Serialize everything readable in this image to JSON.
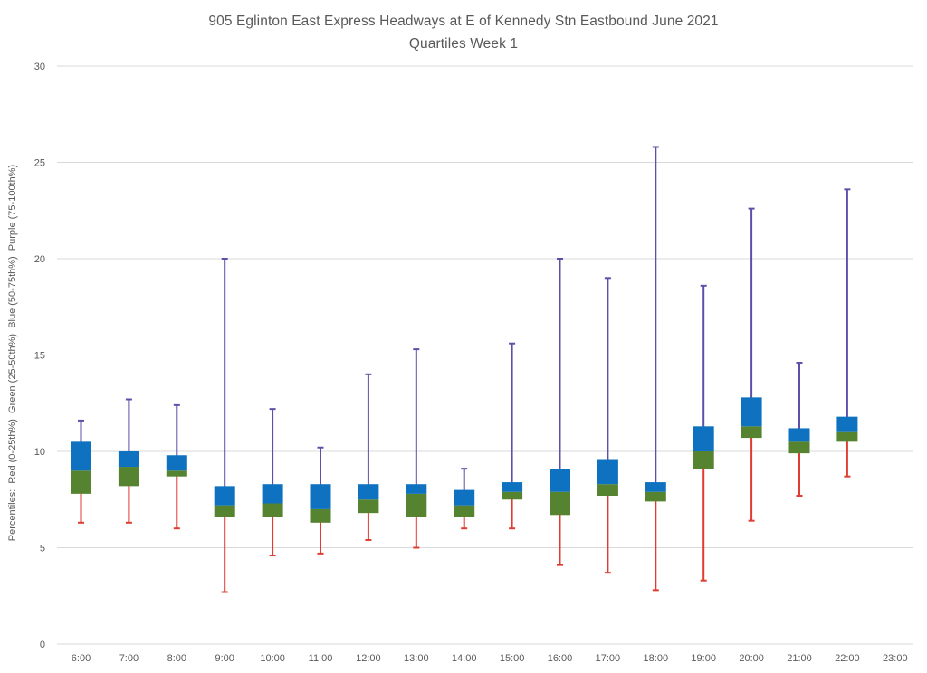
{
  "title": {
    "line1": "905 Eglinton East Express Headways at E of Kennedy Stn Eastbound June 2021",
    "line2": "Quartiles Week 1"
  },
  "chart_data": {
    "type": "boxplot",
    "title": "905 Eglinton East Express Headways at E of Kennedy Stn Eastbound June 2021",
    "subtitle": "Quartiles Week 1",
    "ylabel": "Percentiles:  Red (0-25th%)  Green (25-50th%)  Blue (50-75th%)  Purple (75-100th%)",
    "xlabel": "",
    "ylim": [
      0,
      30
    ],
    "yticks": [
      0,
      5,
      10,
      15,
      20,
      25,
      30
    ],
    "grid": true,
    "legend_position": "none",
    "categories": [
      "6:00",
      "7:00",
      "8:00",
      "9:00",
      "10:00",
      "11:00",
      "12:00",
      "13:00",
      "14:00",
      "15:00",
      "16:00",
      "17:00",
      "18:00",
      "19:00",
      "20:00",
      "21:00",
      "22:00",
      "23:00"
    ],
    "series": [
      {
        "time": "6:00",
        "min": 6.3,
        "q1": 7.8,
        "median": 9.0,
        "q3": 10.5,
        "max": 11.6
      },
      {
        "time": "7:00",
        "min": 6.3,
        "q1": 8.2,
        "median": 9.2,
        "q3": 10.0,
        "max": 12.7
      },
      {
        "time": "8:00",
        "min": 6.0,
        "q1": 8.7,
        "median": 9.0,
        "q3": 9.8,
        "max": 12.4
      },
      {
        "time": "9:00",
        "min": 2.7,
        "q1": 6.6,
        "median": 7.2,
        "q3": 8.2,
        "max": 20.0
      },
      {
        "time": "10:00",
        "min": 4.6,
        "q1": 6.6,
        "median": 7.3,
        "q3": 8.3,
        "max": 12.2
      },
      {
        "time": "11:00",
        "min": 4.7,
        "q1": 6.3,
        "median": 7.0,
        "q3": 8.3,
        "max": 10.2
      },
      {
        "time": "12:00",
        "min": 5.4,
        "q1": 6.8,
        "median": 7.5,
        "q3": 8.3,
        "max": 14.0
      },
      {
        "time": "13:00",
        "min": 5.0,
        "q1": 6.6,
        "median": 7.8,
        "q3": 8.3,
        "max": 15.3
      },
      {
        "time": "14:00",
        "min": 6.0,
        "q1": 6.6,
        "median": 7.2,
        "q3": 8.0,
        "max": 9.1
      },
      {
        "time": "15:00",
        "min": 6.0,
        "q1": 7.5,
        "median": 7.9,
        "q3": 8.4,
        "max": 15.6
      },
      {
        "time": "16:00",
        "min": 4.1,
        "q1": 6.7,
        "median": 7.9,
        "q3": 9.1,
        "max": 20.0
      },
      {
        "time": "17:00",
        "min": 3.7,
        "q1": 7.7,
        "median": 8.3,
        "q3": 9.6,
        "max": 19.0
      },
      {
        "time": "18:00",
        "min": 2.8,
        "q1": 7.4,
        "median": 7.9,
        "q3": 8.4,
        "max": 25.8
      },
      {
        "time": "19:00",
        "min": 3.3,
        "q1": 9.1,
        "median": 10.0,
        "q3": 11.3,
        "max": 18.6
      },
      {
        "time": "20:00",
        "min": 6.4,
        "q1": 10.7,
        "median": 11.3,
        "q3": 12.8,
        "max": 22.6
      },
      {
        "time": "21:00",
        "min": 7.7,
        "q1": 9.9,
        "median": 10.5,
        "q3": 11.2,
        "max": 14.6
      },
      {
        "time": "22:00",
        "min": 8.7,
        "q1": 10.5,
        "median": 11.0,
        "q3": 11.8,
        "max": 23.6
      }
    ],
    "colors": {
      "red": "#E03C31",
      "green": "#56832F",
      "blue": "#0E72C0",
      "purple": "#5F4FA8",
      "gridline": "#D9D9D9",
      "text": "#595959"
    }
  }
}
